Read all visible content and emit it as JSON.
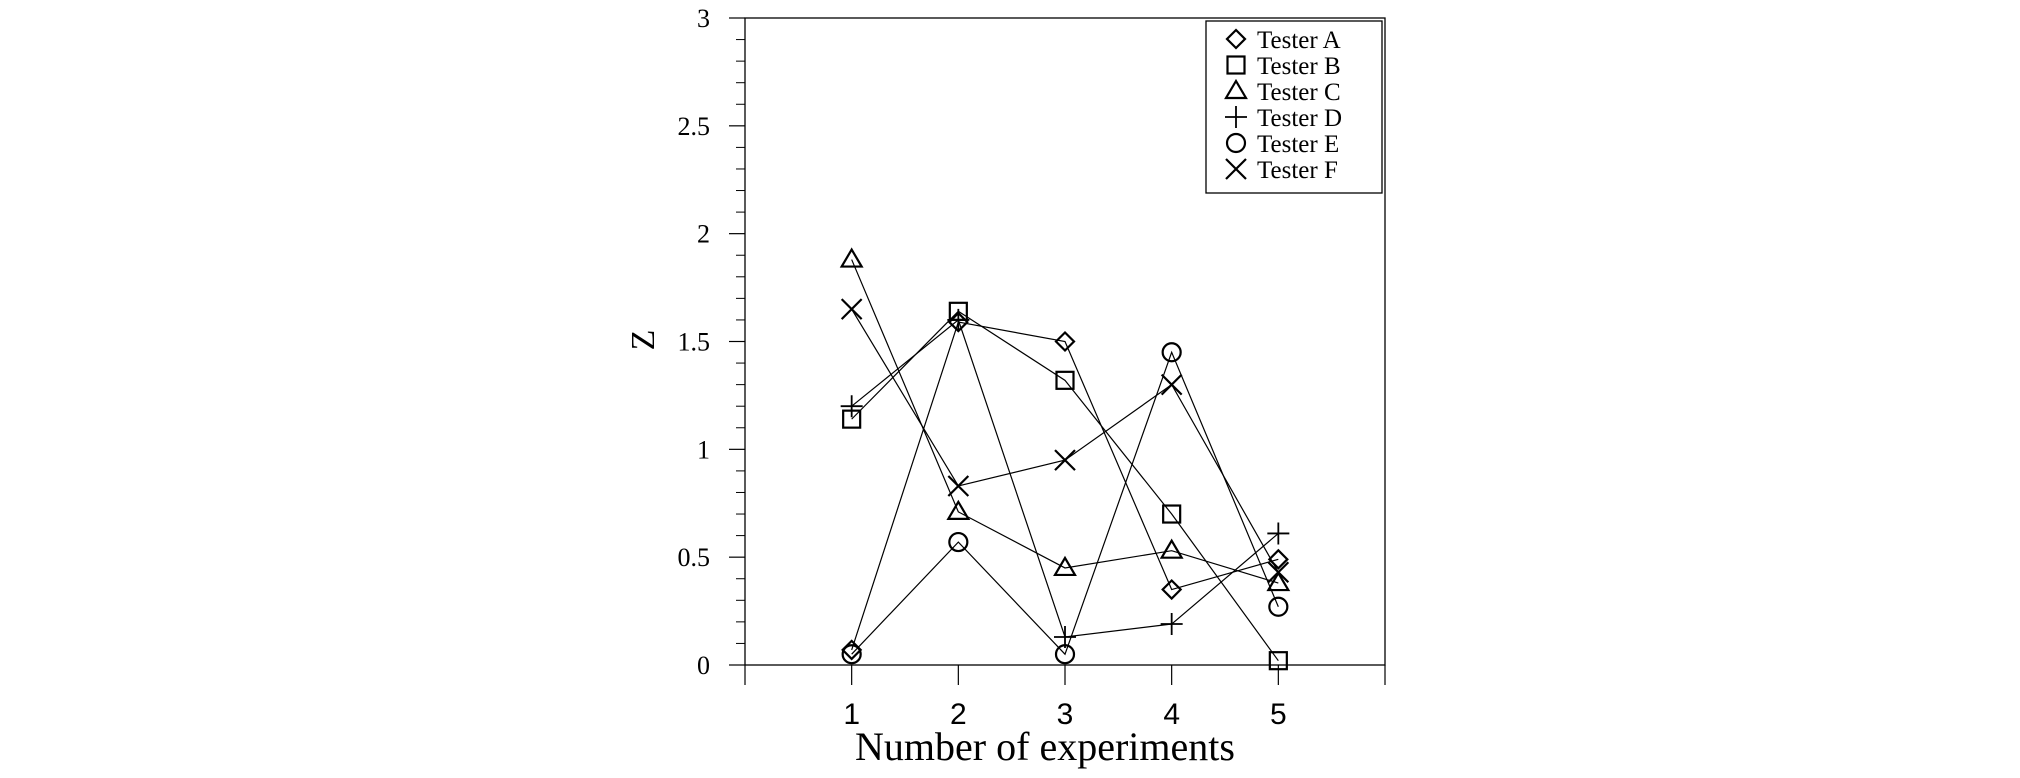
{
  "chart_data": {
    "type": "line",
    "title": "",
    "xlabel": "Number of experiments",
    "ylabel": "Z",
    "x": [
      1,
      2,
      3,
      4,
      5
    ],
    "xlim": [
      0,
      6
    ],
    "ylim": [
      0,
      3
    ],
    "x_ticks": [
      "1",
      "2",
      "3",
      "4",
      "5"
    ],
    "y_ticks": [
      "0",
      "0.5",
      "1",
      "1.5",
      "2",
      "2.5",
      "3"
    ],
    "grid": false,
    "legend_position": "top-right",
    "series": [
      {
        "name": "Tester A",
        "marker": "diamond",
        "values": [
          0.07,
          1.59,
          1.5,
          0.35,
          0.49
        ]
      },
      {
        "name": "Tester B",
        "marker": "square",
        "values": [
          1.14,
          1.64,
          1.32,
          0.7,
          0.02
        ]
      },
      {
        "name": "Tester C",
        "marker": "triangle",
        "values": [
          1.88,
          0.71,
          0.45,
          0.53,
          0.38
        ]
      },
      {
        "name": "Tester D",
        "marker": "plus",
        "values": [
          1.2,
          1.6,
          0.13,
          0.19,
          0.61
        ]
      },
      {
        "name": "Tester E",
        "marker": "circle",
        "values": [
          0.05,
          0.57,
          0.05,
          1.45,
          0.27
        ]
      },
      {
        "name": "Tester F",
        "marker": "cross",
        "values": [
          1.65,
          0.83,
          0.95,
          1.3,
          0.43
        ]
      }
    ]
  }
}
